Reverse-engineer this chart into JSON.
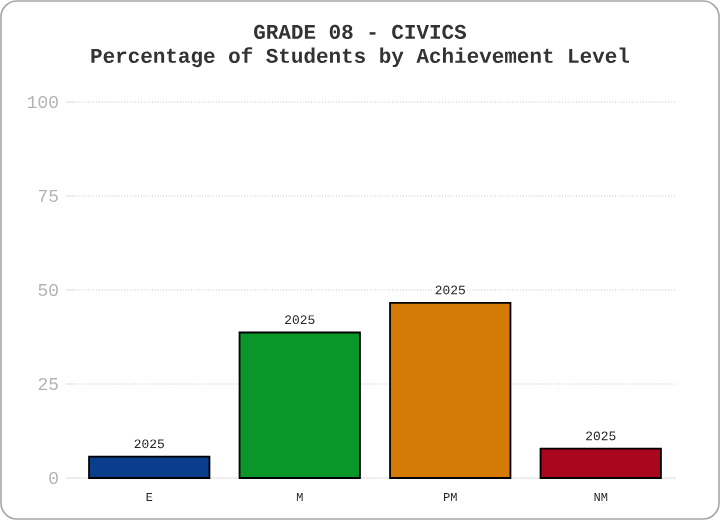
{
  "chart_data": {
    "type": "bar",
    "title": "GRADE 08 - CIVICS",
    "subtitle": "Percentage of Students by Achievement Level",
    "categories": [
      "E",
      "M",
      "PM",
      "NM"
    ],
    "series": [
      {
        "name": "2025",
        "values": [
          5.7,
          38.7,
          46.6,
          7.8
        ],
        "colors": [
          "#0a3e8c",
          "#0a9628",
          "#d47a06",
          "#a8071e"
        ]
      }
    ],
    "ylim": [
      0,
      100
    ],
    "yticks": [
      0,
      25,
      50,
      75,
      100
    ],
    "grid": "y"
  }
}
